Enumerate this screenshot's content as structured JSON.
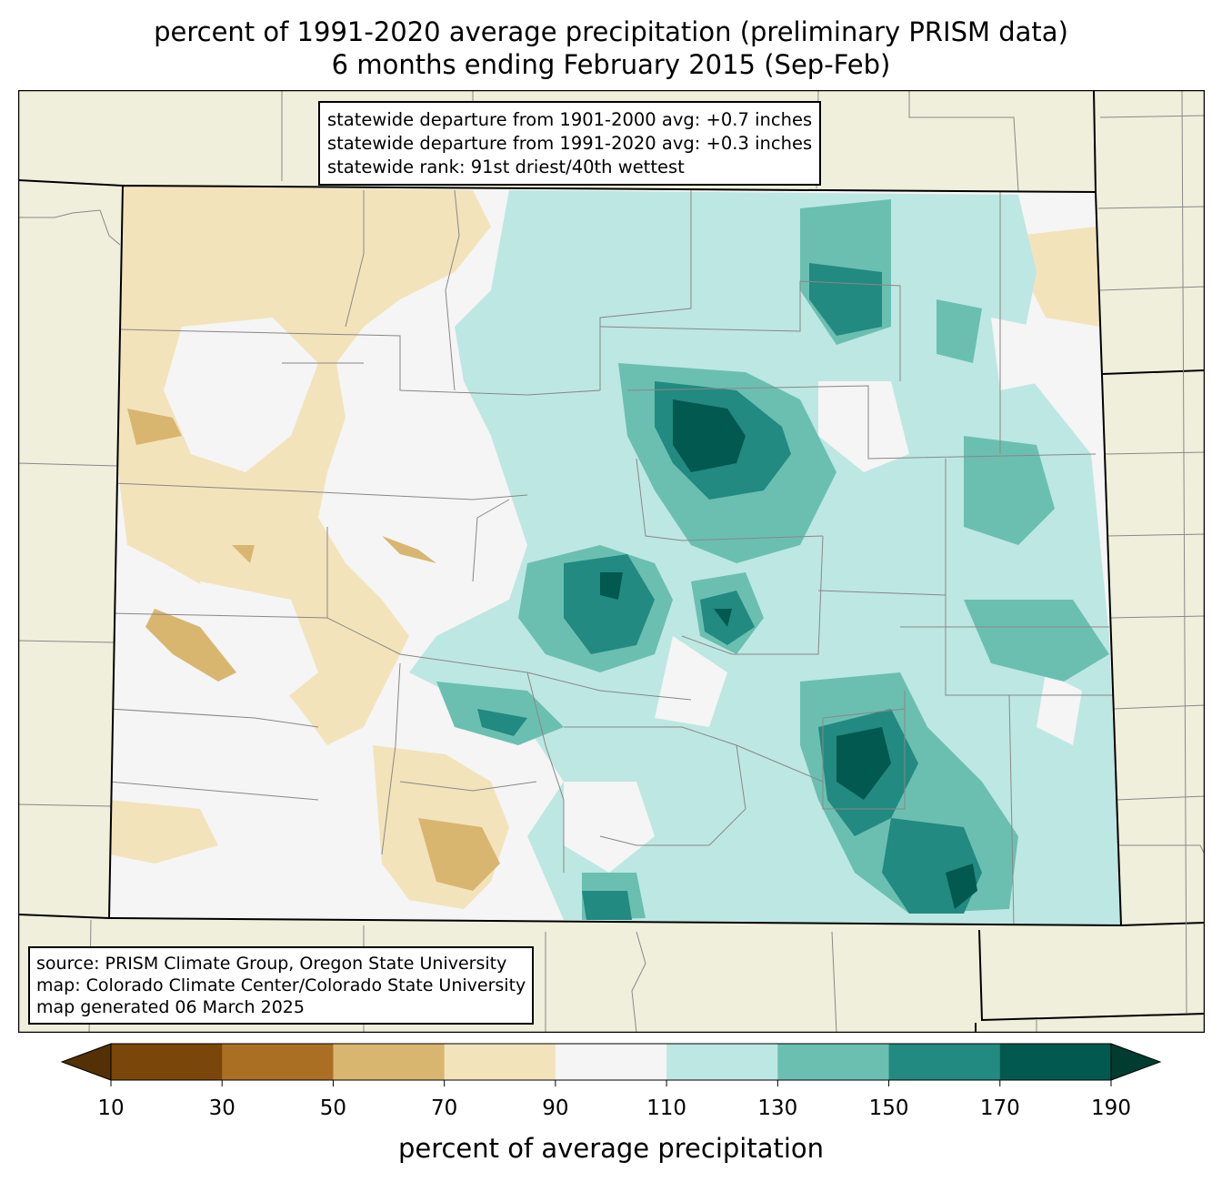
{
  "title": {
    "line1": "percent of 1991-2020 average precipitation (preliminary PRISM data)",
    "line2": "6 months ending February 2015 (Sep-Feb)"
  },
  "stats": [
    "statewide departure from 1901-2000 avg: +0.7 inches",
    "statewide departure from 1991-2020 avg: +0.3 inches",
    "statewide rank: 91st driest/40th wettest"
  ],
  "credits": [
    "source: PRISM Climate Group, Oregon State University",
    "map: Colorado Climate Center/Colorado State University",
    "map generated 06 March 2025"
  ],
  "colorbar": {
    "label": "percent of average precipitation",
    "ticks": [
      10,
      30,
      50,
      70,
      90,
      110,
      130,
      150,
      170,
      190
    ],
    "under_color": "#543005",
    "over_color": "#003c30",
    "bin_colors": [
      "#7a4609",
      "#ab6f24",
      "#d9b670",
      "#f3e3bb",
      "#f4f5f4",
      "#bde7e2",
      "#6bbfb1",
      "#228a80",
      "#02594f"
    ]
  },
  "map_colors": {
    "land_outside": "#f0efdc",
    "dry_light": "#f3e3bb",
    "dry_medium": "#d9b670",
    "normal": "#f4f5f4",
    "wet_light": "#bde7e2",
    "wet_medium": "#6bbfb1",
    "wet_heavy": "#228a80",
    "wet_extreme": "#02594f"
  }
}
